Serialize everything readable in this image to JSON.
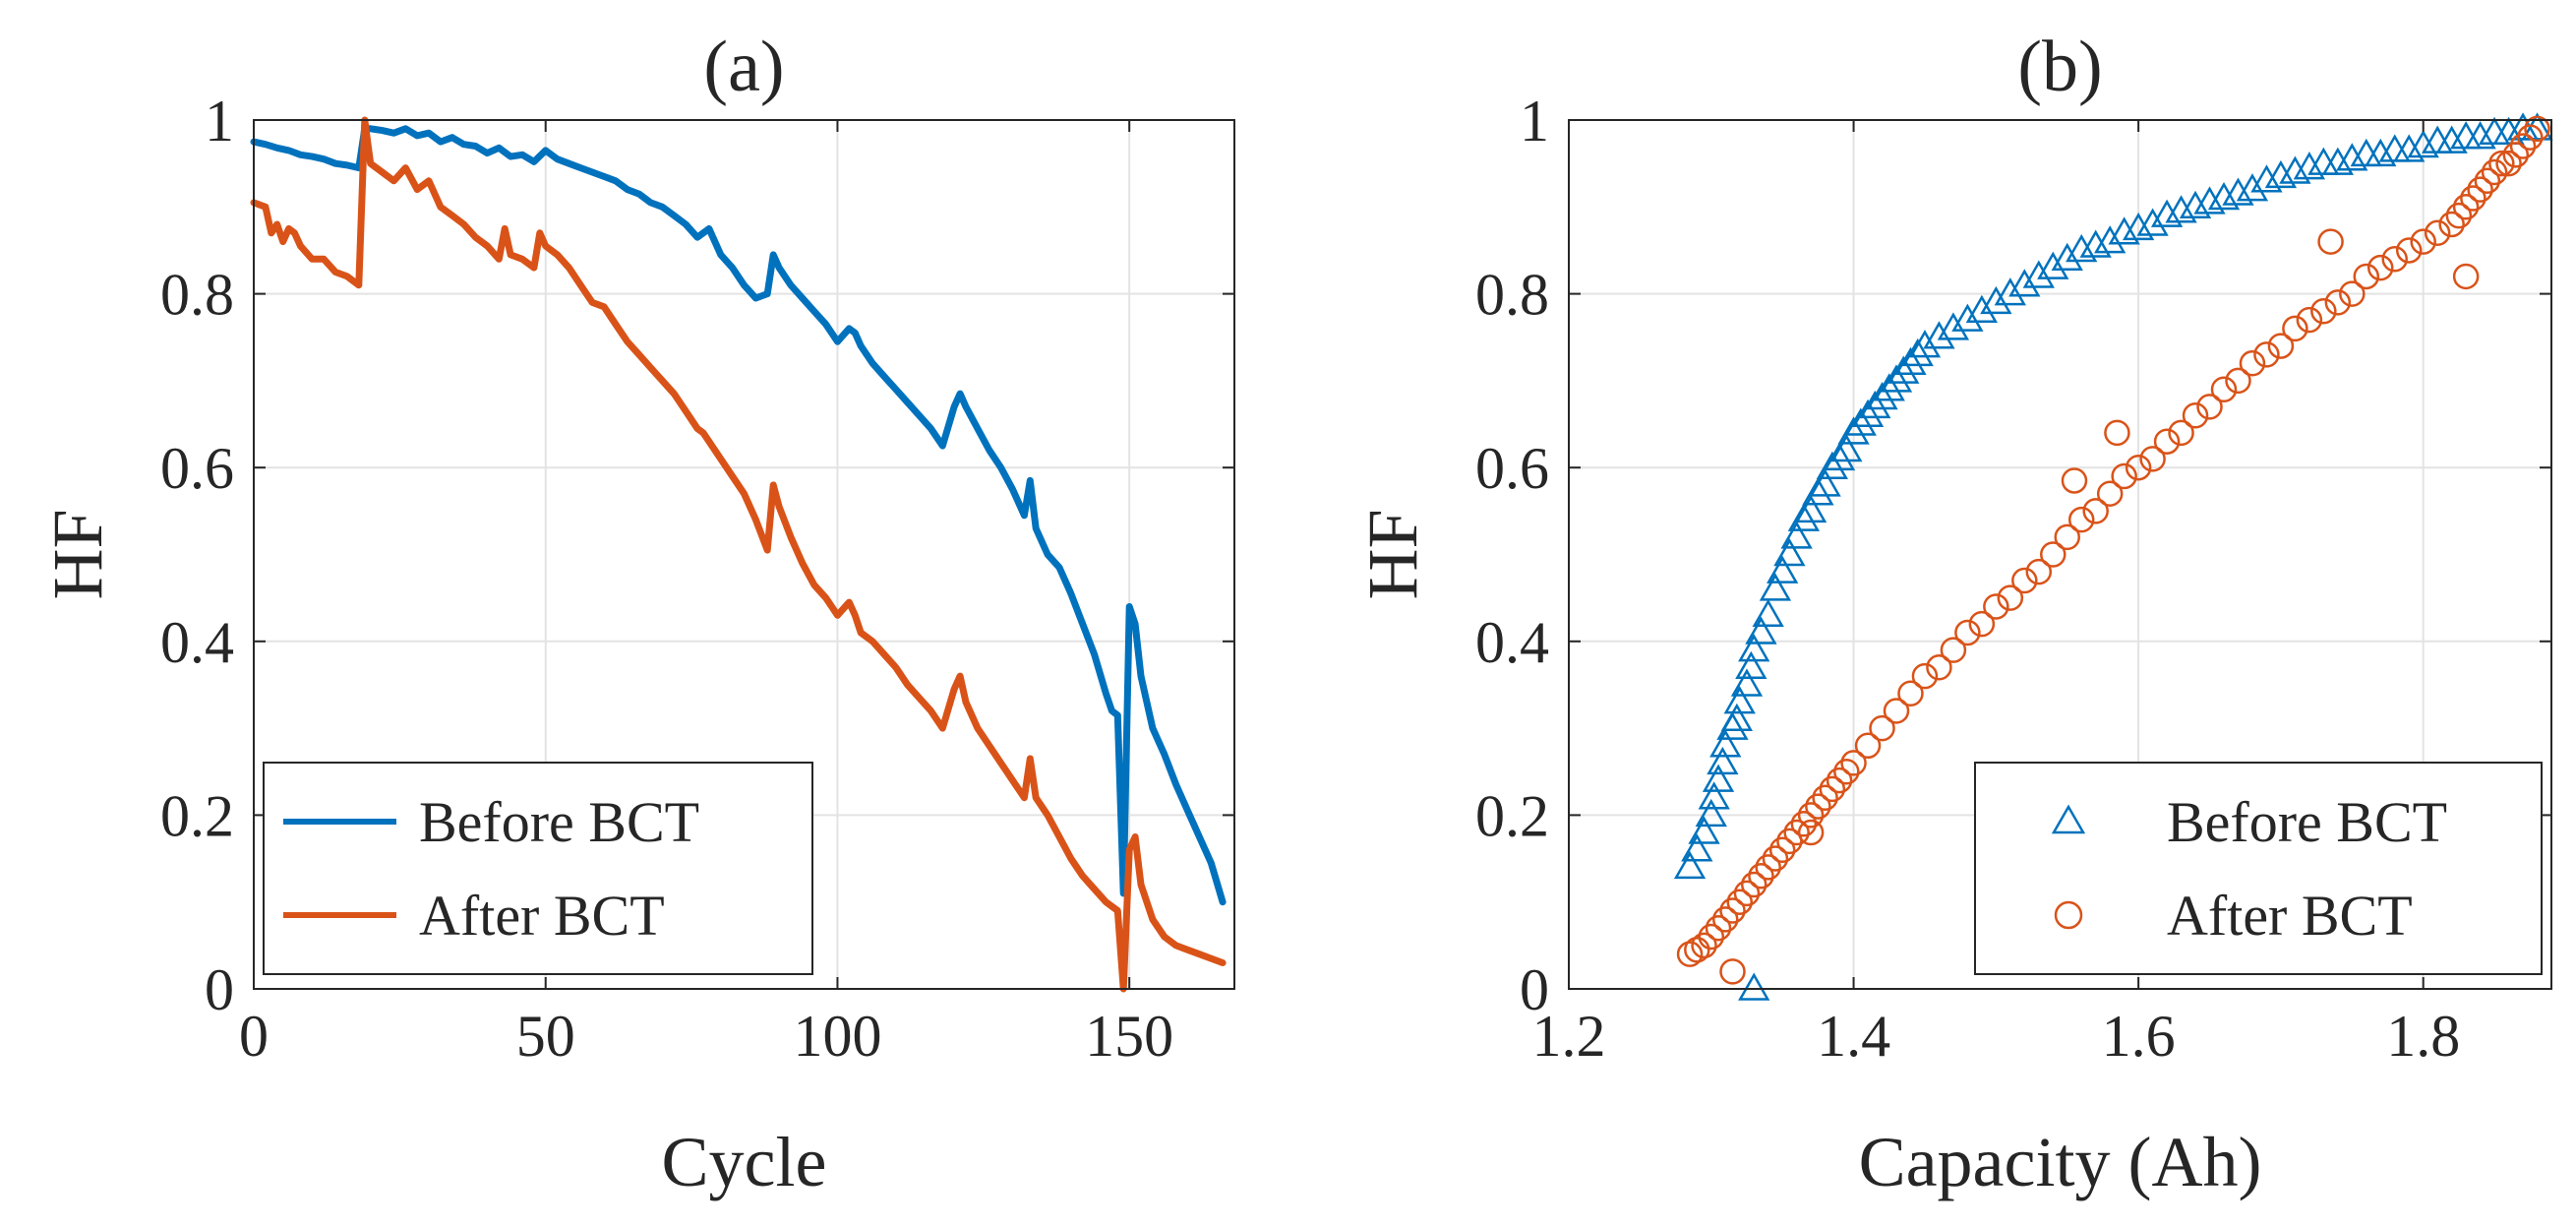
{
  "colors": {
    "before": "#0072BD",
    "after": "#D95319",
    "axis": "#262626",
    "grid": "#e3e3e3"
  },
  "chart_data": [
    {
      "type": "line",
      "title": "(a)",
      "xlabel": "Cycle",
      "ylabel": "HF",
      "xlim": [
        0,
        168
      ],
      "ylim": [
        0,
        1
      ],
      "xticks": [
        0,
        50,
        100,
        150
      ],
      "xtick_labels": [
        "0",
        "50",
        "100",
        "150"
      ],
      "yticks": [
        0,
        0.2,
        0.4,
        0.6,
        0.8,
        1
      ],
      "ytick_labels": [
        "0",
        "0.2",
        "0.4",
        "0.6",
        "0.8",
        "1"
      ],
      "grid": true,
      "legend_position": "bottom-left",
      "series": [
        {
          "name": "Before BCT",
          "color": "#0072BD",
          "x": [
            0,
            2,
            4,
            6,
            8,
            10,
            12,
            14,
            16,
            18,
            19,
            20,
            22,
            24,
            26,
            28,
            30,
            32,
            34,
            36,
            38,
            40,
            42,
            44,
            46,
            48,
            50,
            52,
            54,
            56,
            58,
            60,
            62,
            64,
            66,
            68,
            70,
            72,
            74,
            76,
            78,
            80,
            82,
            84,
            86,
            88,
            89,
            90,
            92,
            94,
            96,
            98,
            100,
            102,
            103,
            104,
            106,
            108,
            110,
            112,
            114,
            116,
            118,
            120,
            121,
            122,
            124,
            126,
            128,
            130,
            132,
            133,
            134,
            136,
            138,
            140,
            142,
            144,
            146,
            147,
            148,
            149,
            150,
            151,
            152,
            154,
            156,
            158,
            160,
            162,
            164,
            166
          ],
          "y": [
            0.975,
            0.972,
            0.968,
            0.965,
            0.96,
            0.958,
            0.955,
            0.95,
            0.948,
            0.945,
            0.99,
            0.99,
            0.988,
            0.985,
            0.99,
            0.982,
            0.985,
            0.975,
            0.98,
            0.972,
            0.97,
            0.962,
            0.968,
            0.958,
            0.96,
            0.952,
            0.965,
            0.955,
            0.95,
            0.945,
            0.94,
            0.935,
            0.93,
            0.92,
            0.915,
            0.905,
            0.9,
            0.89,
            0.88,
            0.865,
            0.875,
            0.845,
            0.83,
            0.81,
            0.795,
            0.8,
            0.845,
            0.83,
            0.81,
            0.795,
            0.78,
            0.765,
            0.745,
            0.76,
            0.755,
            0.74,
            0.72,
            0.705,
            0.69,
            0.675,
            0.66,
            0.645,
            0.625,
            0.67,
            0.685,
            0.67,
            0.645,
            0.62,
            0.6,
            0.575,
            0.545,
            0.585,
            0.53,
            0.5,
            0.485,
            0.455,
            0.42,
            0.385,
            0.34,
            0.32,
            0.315,
            0.11,
            0.44,
            0.42,
            0.36,
            0.3,
            0.27,
            0.235,
            0.205,
            0.175,
            0.145,
            0.1
          ]
        },
        {
          "name": "After BCT",
          "color": "#D95319",
          "x": [
            0,
            2,
            3,
            4,
            5,
            6,
            7,
            8,
            10,
            12,
            14,
            16,
            18,
            19,
            20,
            22,
            24,
            26,
            28,
            30,
            32,
            34,
            36,
            38,
            40,
            42,
            43,
            44,
            46,
            48,
            49,
            50,
            52,
            54,
            56,
            58,
            60,
            62,
            64,
            66,
            68,
            70,
            72,
            74,
            76,
            77,
            78,
            80,
            82,
            84,
            86,
            88,
            89,
            90,
            92,
            94,
            96,
            98,
            100,
            102,
            103,
            104,
            106,
            108,
            110,
            112,
            114,
            116,
            118,
            120,
            121,
            122,
            124,
            126,
            128,
            130,
            132,
            133,
            134,
            136,
            138,
            140,
            142,
            144,
            146,
            148,
            149,
            150,
            151,
            152,
            154,
            156,
            158,
            160,
            162,
            164,
            166
          ],
          "y": [
            0.905,
            0.9,
            0.87,
            0.88,
            0.86,
            0.875,
            0.87,
            0.855,
            0.84,
            0.84,
            0.825,
            0.82,
            0.81,
            1.0,
            0.95,
            0.94,
            0.93,
            0.945,
            0.92,
            0.93,
            0.9,
            0.89,
            0.88,
            0.865,
            0.855,
            0.84,
            0.875,
            0.845,
            0.84,
            0.83,
            0.87,
            0.855,
            0.845,
            0.83,
            0.81,
            0.79,
            0.785,
            0.765,
            0.745,
            0.73,
            0.715,
            0.7,
            0.685,
            0.665,
            0.645,
            0.64,
            0.63,
            0.61,
            0.59,
            0.57,
            0.54,
            0.505,
            0.58,
            0.555,
            0.52,
            0.49,
            0.465,
            0.45,
            0.43,
            0.445,
            0.43,
            0.41,
            0.4,
            0.385,
            0.37,
            0.35,
            0.335,
            0.32,
            0.3,
            0.345,
            0.36,
            0.33,
            0.3,
            0.28,
            0.26,
            0.24,
            0.22,
            0.265,
            0.22,
            0.2,
            0.175,
            0.15,
            0.13,
            0.115,
            0.1,
            0.09,
            0.0,
            0.16,
            0.175,
            0.12,
            0.08,
            0.06,
            0.05,
            0.045,
            0.04,
            0.035,
            0.03
          ]
        }
      ]
    },
    {
      "type": "scatter",
      "title": "(b)",
      "xlabel": "Capacity (Ah)",
      "ylabel": "HF",
      "xlim": [
        1.2,
        1.89
      ],
      "ylim": [
        0,
        1
      ],
      "xticks": [
        1.2,
        1.4,
        1.6,
        1.8
      ],
      "xtick_labels": [
        "1.2",
        "1.4",
        "1.6",
        "1.8"
      ],
      "yticks": [
        0,
        0.2,
        0.4,
        0.6,
        0.8,
        1
      ],
      "ytick_labels": [
        "0",
        "0.2",
        "0.4",
        "0.6",
        "0.8",
        "1"
      ],
      "grid": true,
      "legend_position": "bottom-right",
      "series": [
        {
          "name": "Before BCT",
          "marker": "triangle",
          "color": "#0072BD",
          "x": [
            1.285,
            1.29,
            1.295,
            1.3,
            1.302,
            1.305,
            1.308,
            1.31,
            1.315,
            1.318,
            1.32,
            1.325,
            1.328,
            1.33,
            1.335,
            1.34,
            1.345,
            1.35,
            1.355,
            1.36,
            1.365,
            1.37,
            1.375,
            1.38,
            1.385,
            1.39,
            1.395,
            1.4,
            1.405,
            1.41,
            1.415,
            1.42,
            1.425,
            1.43,
            1.435,
            1.44,
            1.445,
            1.45,
            1.46,
            1.47,
            1.48,
            1.49,
            1.5,
            1.51,
            1.52,
            1.53,
            1.54,
            1.55,
            1.56,
            1.57,
            1.58,
            1.59,
            1.6,
            1.61,
            1.62,
            1.63,
            1.64,
            1.65,
            1.66,
            1.67,
            1.68,
            1.69,
            1.7,
            1.71,
            1.72,
            1.73,
            1.74,
            1.75,
            1.76,
            1.77,
            1.78,
            1.79,
            1.8,
            1.81,
            1.82,
            1.83,
            1.84,
            1.85,
            1.86,
            1.87,
            1.88,
            1.33
          ],
          "y": [
            0.14,
            0.16,
            0.18,
            0.2,
            0.22,
            0.24,
            0.26,
            0.28,
            0.3,
            0.31,
            0.33,
            0.35,
            0.37,
            0.39,
            0.41,
            0.43,
            0.46,
            0.48,
            0.5,
            0.52,
            0.54,
            0.55,
            0.57,
            0.58,
            0.6,
            0.61,
            0.62,
            0.64,
            0.65,
            0.66,
            0.67,
            0.68,
            0.69,
            0.7,
            0.71,
            0.72,
            0.73,
            0.74,
            0.75,
            0.76,
            0.77,
            0.78,
            0.79,
            0.8,
            0.81,
            0.82,
            0.83,
            0.84,
            0.85,
            0.855,
            0.86,
            0.87,
            0.875,
            0.88,
            0.89,
            0.895,
            0.9,
            0.905,
            0.91,
            0.915,
            0.92,
            0.93,
            0.935,
            0.94,
            0.945,
            0.95,
            0.95,
            0.955,
            0.96,
            0.96,
            0.965,
            0.965,
            0.97,
            0.975,
            0.975,
            0.98,
            0.98,
            0.985,
            0.985,
            0.99,
            0.99,
            0.0
          ]
        },
        {
          "name": "After BCT",
          "marker": "circle",
          "color": "#D95319",
          "x": [
            1.285,
            1.29,
            1.295,
            1.3,
            1.305,
            1.31,
            1.315,
            1.32,
            1.325,
            1.33,
            1.335,
            1.34,
            1.345,
            1.35,
            1.355,
            1.36,
            1.365,
            1.37,
            1.375,
            1.38,
            1.385,
            1.39,
            1.395,
            1.4,
            1.41,
            1.42,
            1.43,
            1.44,
            1.45,
            1.46,
            1.47,
            1.48,
            1.49,
            1.5,
            1.51,
            1.52,
            1.53,
            1.54,
            1.55,
            1.56,
            1.57,
            1.58,
            1.59,
            1.6,
            1.61,
            1.62,
            1.63,
            1.64,
            1.65,
            1.66,
            1.67,
            1.68,
            1.69,
            1.7,
            1.71,
            1.72,
            1.73,
            1.74,
            1.75,
            1.76,
            1.77,
            1.78,
            1.79,
            1.8,
            1.81,
            1.82,
            1.825,
            1.83,
            1.835,
            1.84,
            1.845,
            1.85,
            1.855,
            1.86,
            1.865,
            1.87,
            1.875,
            1.88,
            1.315,
            1.37,
            1.555,
            1.585,
            1.735,
            1.83
          ],
          "y": [
            0.04,
            0.045,
            0.05,
            0.06,
            0.07,
            0.08,
            0.09,
            0.1,
            0.11,
            0.12,
            0.13,
            0.14,
            0.15,
            0.16,
            0.17,
            0.18,
            0.19,
            0.2,
            0.21,
            0.22,
            0.23,
            0.24,
            0.25,
            0.26,
            0.28,
            0.3,
            0.32,
            0.34,
            0.36,
            0.37,
            0.39,
            0.41,
            0.42,
            0.44,
            0.45,
            0.47,
            0.48,
            0.5,
            0.52,
            0.54,
            0.55,
            0.57,
            0.59,
            0.6,
            0.61,
            0.63,
            0.64,
            0.66,
            0.67,
            0.69,
            0.7,
            0.72,
            0.73,
            0.74,
            0.76,
            0.77,
            0.78,
            0.79,
            0.8,
            0.82,
            0.83,
            0.84,
            0.85,
            0.86,
            0.87,
            0.88,
            0.89,
            0.9,
            0.91,
            0.92,
            0.93,
            0.94,
            0.95,
            0.95,
            0.96,
            0.97,
            0.98,
            0.99,
            0.02,
            0.18,
            0.585,
            0.64,
            0.86,
            0.82
          ]
        }
      ]
    }
  ]
}
